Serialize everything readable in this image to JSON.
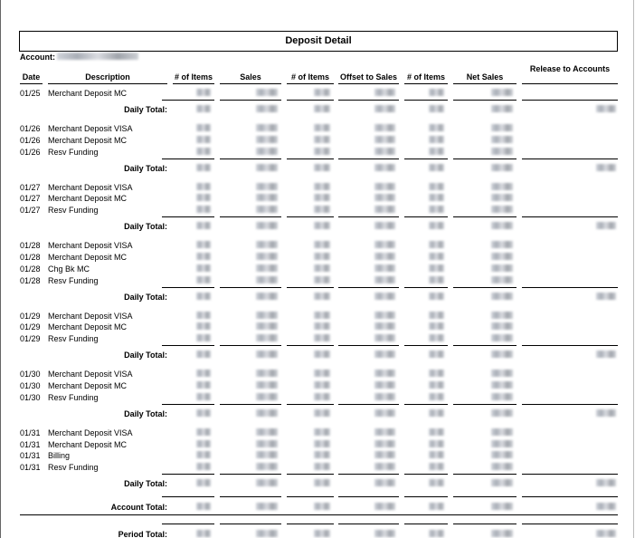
{
  "title": "Deposit Detail",
  "account_label": "Account:",
  "columns": [
    "Date",
    "Description",
    "# of Items",
    "Sales",
    "# of Items",
    "Offset to Sales",
    "# of Items",
    "Net Sales",
    "Release to Accounts"
  ],
  "daily_total_label": "Daily Total:",
  "account_total_label": "Account Total:",
  "period_total_label": "Period Total:",
  "note_values": "All numeric values are redacted/blurred",
  "sections": [
    {
      "rows": [
        {
          "date": "01/25",
          "description": "Merchant Deposit MC"
        }
      ]
    },
    {
      "rows": [
        {
          "date": "01/26",
          "description": "Merchant Deposit VISA"
        },
        {
          "date": "01/26",
          "description": "Merchant Deposit MC"
        },
        {
          "date": "01/26",
          "description": "Resv Funding"
        }
      ]
    },
    {
      "rows": [
        {
          "date": "01/27",
          "description": "Merchant Deposit VISA"
        },
        {
          "date": "01/27",
          "description": "Merchant Deposit MC"
        },
        {
          "date": "01/27",
          "description": "Resv Funding"
        }
      ]
    },
    {
      "rows": [
        {
          "date": "01/28",
          "description": "Merchant Deposit VISA"
        },
        {
          "date": "01/28",
          "description": "Merchant Deposit MC"
        },
        {
          "date": "01/28",
          "description": "Chg Bk MC"
        },
        {
          "date": "01/28",
          "description": "Resv Funding"
        }
      ]
    },
    {
      "rows": [
        {
          "date": "01/29",
          "description": "Merchant Deposit VISA"
        },
        {
          "date": "01/29",
          "description": "Merchant Deposit MC"
        },
        {
          "date": "01/29",
          "description": "Resv Funding"
        }
      ]
    },
    {
      "rows": [
        {
          "date": "01/30",
          "description": "Merchant Deposit VISA"
        },
        {
          "date": "01/30",
          "description": "Merchant Deposit MC"
        },
        {
          "date": "01/30",
          "description": "Resv Funding"
        }
      ]
    },
    {
      "rows": [
        {
          "date": "01/31",
          "description": "Merchant Deposit VISA"
        },
        {
          "date": "01/31",
          "description": "Merchant Deposit MC"
        },
        {
          "date": "01/31",
          "description": "Billing"
        },
        {
          "date": "01/31",
          "description": "Resv Funding"
        }
      ]
    }
  ]
}
